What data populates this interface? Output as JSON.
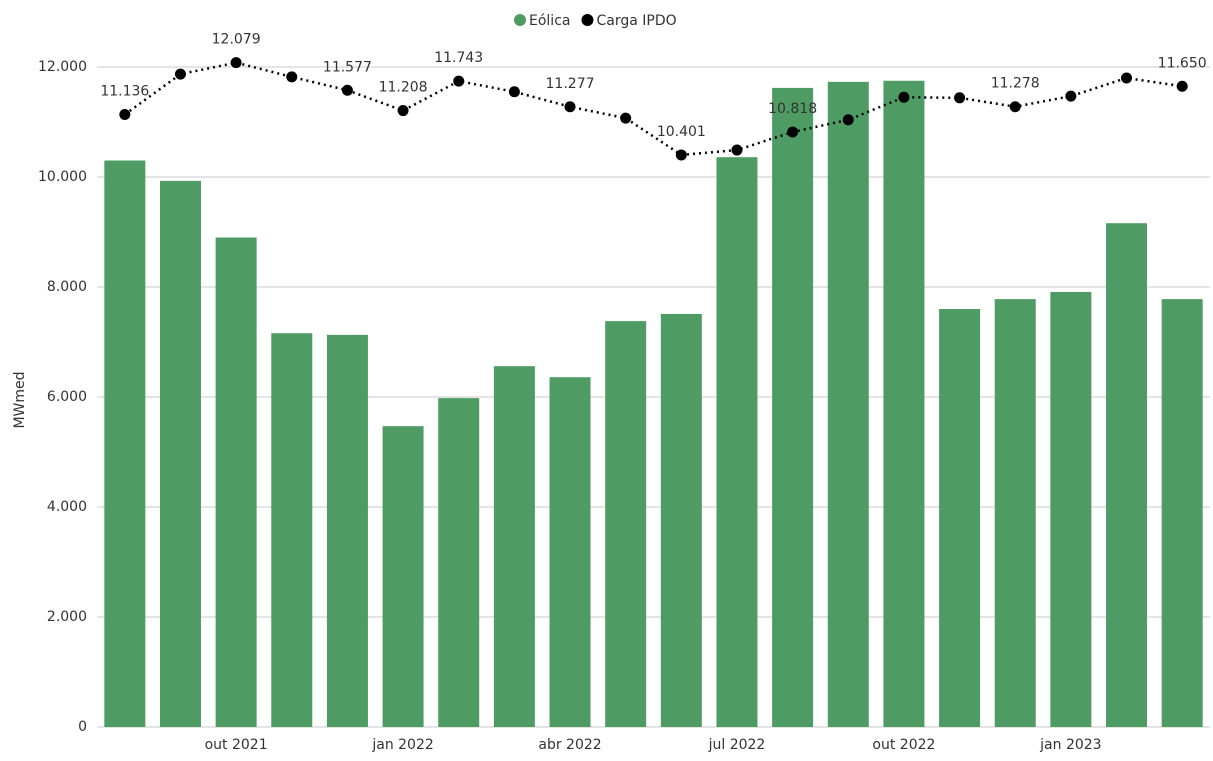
{
  "chart_data": {
    "type": "bar_line",
    "categories": [
      null,
      null,
      "out 2021",
      null,
      null,
      "jan 2022",
      null,
      null,
      "abr 2022",
      null,
      null,
      "jul 2022",
      null,
      null,
      "out 2022",
      null,
      null,
      "jan 2023",
      null,
      null
    ],
    "y_label": "MWmed",
    "series": [
      {
        "name": "Eólica",
        "type": "bar",
        "color": "#4e9c64",
        "values": [
          10300,
          9930,
          8900,
          7160,
          7130,
          5470,
          5980,
          6560,
          6360,
          7380,
          7510,
          10360,
          11620,
          11730,
          11750,
          7600,
          7780,
          7910,
          9160,
          7780
        ]
      },
      {
        "name": "Carga IPDO",
        "type": "line",
        "color": "#000000",
        "values": [
          11136,
          11870,
          12079,
          11820,
          11577,
          11208,
          11743,
          11550,
          11277,
          11070,
          10401,
          10490,
          10818,
          11040,
          11450,
          11440,
          11278,
          11470,
          11800,
          11650
        ],
        "value_labels": [
          "11.136",
          null,
          "12.079",
          null,
          "11.577",
          "11.208",
          "11.743",
          null,
          "11.277",
          null,
          "10.401",
          null,
          "10.818",
          null,
          null,
          null,
          "11.278",
          null,
          null,
          "11.650"
        ]
      }
    ],
    "ylim": [
      0,
      12000
    ],
    "yticks": [
      0,
      {
        "value": 2000,
        "label": "2.000"
      },
      {
        "value": 4000,
        "label": "4.000"
      },
      {
        "value": 6000,
        "label": "6.000"
      },
      {
        "value": 8000,
        "label": "8.000"
      },
      {
        "value": 10000,
        "label": "10.000"
      },
      {
        "value": 12000,
        "label": "12.000"
      }
    ],
    "grid": true
  }
}
